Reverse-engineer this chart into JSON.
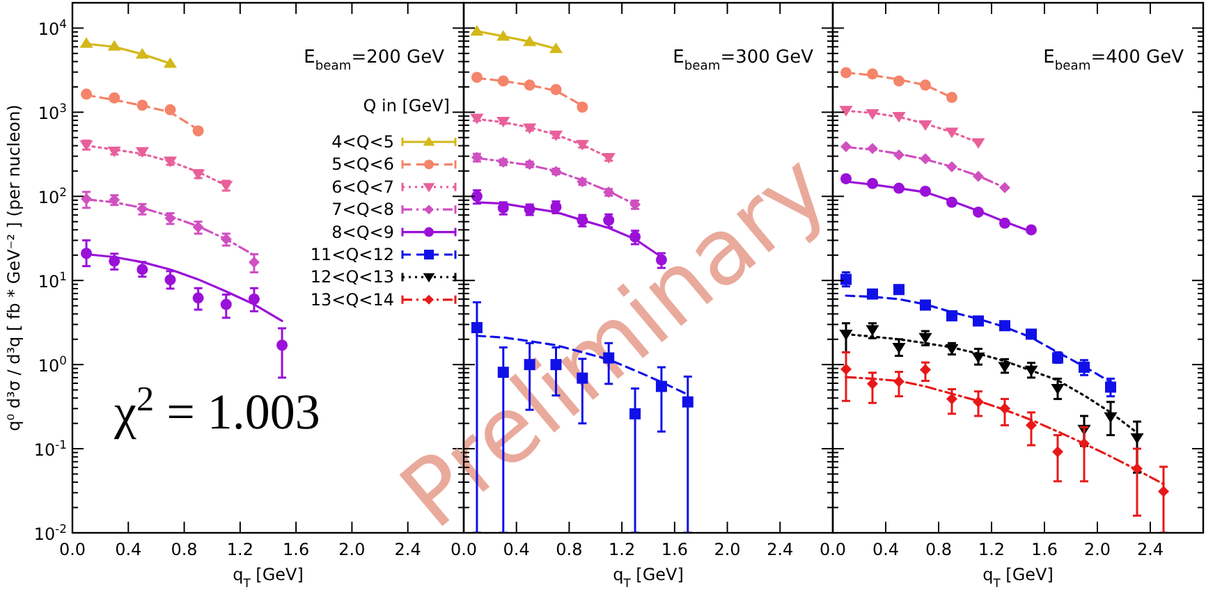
{
  "chart_data": [
    {
      "type": "scatter",
      "title": "E$_{beam}$=200 GeV",
      "xlabel": "q$_{T}$ [GeV]",
      "ylabel": "q⁰ d³σ / d³q [ fb * GeV⁻² ] (per nucleon)",
      "legend_title": "Q in [GeV]",
      "legend": "right",
      "log": "y",
      "grid": false,
      "xlim": [
        0,
        2.8
      ],
      "xticks": [
        {
          "value": 0,
          "label": "0.0"
        },
        {
          "value": 0.4,
          "label": "0.4"
        },
        {
          "value": 0.8,
          "label": "0.8"
        },
        {
          "value": 1.2,
          "label": "1.2"
        },
        {
          "value": 1.6,
          "label": "1.6"
        },
        {
          "value": 2.0,
          "label": "2.0"
        },
        {
          "value": 2.4,
          "label": "2.4"
        }
      ],
      "ylim": [
        0.01,
        20000
      ],
      "yticks": [
        {
          "value": 0.01,
          "label": "10$^{-2}$"
        },
        {
          "value": 0.1,
          "label": "10$^{-1}$"
        },
        {
          "value": 1,
          "label": "10$^{0}$"
        },
        {
          "value": 10,
          "label": "10$^{1}$"
        },
        {
          "value": 100,
          "label": "10$^{2}$"
        },
        {
          "value": 1000,
          "label": "10$^{3}$"
        },
        {
          "value": 10000,
          "label": "10$^{4}$"
        }
      ],
      "annotations": [
        "χ$^{2}$ = 1.003"
      ],
      "series": [
        {
          "type": "line",
          "color": "#d4b81a",
          "line_style": "solid",
          "x": [
            0.1,
            0.3,
            0.5,
            0.7
          ],
          "values": [
            6500,
            6000,
            4900,
            3800
          ]
        },
        {
          "type": "line",
          "color": "#f4846a",
          "line_style": "dashed",
          "x": [
            0.1,
            0.3,
            0.5,
            0.7,
            0.9
          ],
          "values": [
            1600,
            1400,
            1200,
            1000,
            620
          ]
        },
        {
          "type": "line",
          "color": "#e8609a",
          "line_style": "dotted",
          "x": [
            0.1,
            0.3,
            0.5,
            0.7,
            0.9,
            1.1
          ],
          "values": [
            400,
            360,
            320,
            260,
            195,
            135
          ]
        },
        {
          "type": "line",
          "color": "#d050c0",
          "line_style": "dashdot",
          "x": [
            0.1,
            0.3,
            0.5,
            0.7,
            0.9,
            1.1,
            1.3
          ],
          "values": [
            92,
            85,
            73,
            58,
            44,
            31,
            20
          ]
        },
        {
          "type": "line",
          "color": "#9a10d8",
          "line_style": "solid",
          "x": [
            0.1,
            0.3,
            0.5,
            0.7,
            0.9,
            1.1,
            1.3,
            1.5
          ],
          "values": [
            20.5,
            19,
            16.5,
            13.5,
            10.3,
            7.4,
            5.2,
            3.3
          ]
        },
        {
          "name": "4<Q<5",
          "color": "#d4b81a",
          "marker": "triangle",
          "line_style": "solid",
          "x": [
            0.1,
            0.3,
            0.5,
            0.7
          ],
          "values": [
            6600,
            6100,
            4900,
            3800
          ]
        },
        {
          "name": "5<Q<6",
          "color": "#f4846a",
          "marker": "circle",
          "line_style": "dashed",
          "x": [
            0.1,
            0.3,
            0.5,
            0.7,
            0.9
          ],
          "values": [
            1640,
            1480,
            1210,
            1070,
            600
          ]
        },
        {
          "name": "6<Q<7",
          "color": "#e8609a",
          "marker": "triangle-down",
          "line_style": "dotted",
          "x": [
            0.1,
            0.3,
            0.5,
            0.7,
            0.9,
            1.1
          ],
          "values": [
            410,
            345,
            340,
            262,
            185,
            135
          ],
          "errors": [
            50,
            30,
            30,
            25,
            20,
            18
          ]
        },
        {
          "name": "7<Q<8",
          "color": "#d050c0",
          "marker": "diamond",
          "line_style": "dashdot",
          "x": [
            0.1,
            0.3,
            0.5,
            0.7,
            0.9,
            1.1,
            1.3
          ],
          "values": [
            93,
            91,
            71,
            55,
            43,
            31,
            16.5
          ],
          "errors": [
            20,
            12,
            10,
            8,
            7,
            5,
            4
          ]
        },
        {
          "name": "8<Q<9",
          "color": "#9a10d8",
          "marker": "circle",
          "line_style": "solid",
          "x": [
            0.1,
            0.3,
            0.5,
            0.7,
            0.9,
            1.1,
            1.3,
            1.5
          ],
          "values": [
            21,
            17,
            13.5,
            10.2,
            6.2,
            5.2,
            6.0,
            1.7
          ],
          "errors": [
            [
              14.8,
              30
            ],
            [
              13.5,
              20.8
            ],
            [
              11.1,
              16.6
            ],
            [
              8,
              12.9
            ],
            [
              4.5,
              8.1
            ],
            [
              3.6,
              6.8
            ],
            [
              4.3,
              8.1
            ],
            [
              0.7,
              2.7
            ]
          ]
        },
        {
          "name": "11<Q<12",
          "color": "#1010e8",
          "marker": "square",
          "line_style": "dashed"
        },
        {
          "name": "12<Q<13",
          "color": "#000000",
          "marker": "triangle-down",
          "line_style": "dotted"
        },
        {
          "name": "13<Q<14",
          "color": "#e81818",
          "marker": "diamond",
          "line_style": "dashdot"
        }
      ]
    },
    {
      "type": "scatter",
      "title": "E$_{beam}$=300 GeV",
      "xlabel": "q$_{T}$ [GeV]",
      "log": "y",
      "grid": false,
      "tick_labels": "x",
      "xlim": [
        0,
        2.8
      ],
      "xticks": [
        {
          "value": 0,
          "label": "0.0"
        },
        {
          "value": 0.4,
          "label": "0.4"
        },
        {
          "value": 0.8,
          "label": "0.8"
        },
        {
          "value": 1.2,
          "label": "1.2"
        },
        {
          "value": 1.6,
          "label": "1.6"
        },
        {
          "value": 2.0,
          "label": "2.0"
        },
        {
          "value": 2.4,
          "label": "2.4"
        }
      ],
      "ylim": [
        0.01,
        20000
      ],
      "yticks": [
        0.01,
        0.1,
        1,
        10,
        100,
        1000,
        10000
      ],
      "annotations": [
        "Preliminary"
      ],
      "series": [
        {
          "type": "line",
          "color": "#d4b81a",
          "line_style": "solid",
          "x": [
            0.1,
            0.3,
            0.5,
            0.7
          ],
          "values": [
            9200,
            8000,
            6900,
            5700
          ]
        },
        {
          "type": "line",
          "color": "#f4846a",
          "line_style": "dashed",
          "x": [
            0.1,
            0.3,
            0.5,
            0.7,
            0.9
          ],
          "values": [
            2550,
            2350,
            2100,
            1800,
            1200
          ]
        },
        {
          "type": "line",
          "color": "#e8609a",
          "line_style": "dotted",
          "x": [
            0.1,
            0.3,
            0.5,
            0.7,
            0.9,
            1.1
          ],
          "values": [
            830,
            760,
            660,
            540,
            410,
            290
          ]
        },
        {
          "type": "line",
          "color": "#d050c0",
          "line_style": "dashdot",
          "x": [
            0.1,
            0.3,
            0.5,
            0.7,
            0.9,
            1.1,
            1.3
          ],
          "values": [
            285,
            260,
            235,
            200,
            155,
            115,
            80
          ]
        },
        {
          "type": "line",
          "color": "#9a10d8",
          "line_style": "solid",
          "x": [
            0.1,
            0.3,
            0.5,
            0.7,
            0.9,
            1.1,
            1.3,
            1.5
          ],
          "values": [
            85,
            82,
            73,
            65,
            52,
            42,
            31,
            19
          ]
        },
        {
          "type": "line",
          "color": "#1010e8",
          "line_style": "dashed",
          "x": [
            0.1,
            0.3,
            0.5,
            0.7,
            0.9,
            1.1,
            1.3,
            1.5,
            1.7
          ],
          "values": [
            2.2,
            2.1,
            1.9,
            1.7,
            1.4,
            1.15,
            0.85,
            0.62,
            0.44
          ]
        },
        {
          "color": "#d4b81a",
          "marker": "triangle",
          "x": [
            0.1,
            0.3,
            0.5,
            0.7
          ],
          "values": [
            9200,
            8000,
            6900,
            5700
          ]
        },
        {
          "color": "#f4846a",
          "marker": "circle",
          "x": [
            0.1,
            0.3,
            0.5,
            0.7,
            0.9
          ],
          "values": [
            2600,
            2350,
            2100,
            1860,
            1150
          ]
        },
        {
          "color": "#e8609a",
          "marker": "triangle-down",
          "x": [
            0.1,
            0.3,
            0.5,
            0.7,
            0.9,
            1.1
          ],
          "values": [
            850,
            780,
            650,
            535,
            415,
            290
          ],
          "errors": [
            60,
            50,
            45,
            40,
            35,
            25
          ]
        },
        {
          "color": "#d050c0",
          "marker": "diamond",
          "x": [
            0.1,
            0.3,
            0.5,
            0.7,
            0.9,
            1.1,
            1.3
          ],
          "values": [
            290,
            255,
            240,
            198,
            149,
            112,
            80
          ],
          "errors": [
            30,
            20,
            18,
            15,
            12,
            10,
            9
          ]
        },
        {
          "color": "#9a10d8",
          "marker": "circle",
          "x": [
            0.1,
            0.3,
            0.5,
            0.7,
            0.9,
            1.1,
            1.3,
            1.5
          ],
          "values": [
            100,
            73,
            70,
            75,
            52,
            52,
            33,
            17.6
          ],
          "errors": [
            18,
            12,
            10,
            12,
            8,
            9,
            6,
            3.5
          ]
        },
        {
          "color": "#1010e8",
          "marker": "square",
          "x": [
            0.1,
            0.3,
            0.5,
            0.7,
            0.9,
            1.1,
            1.3,
            1.5,
            1.7
          ],
          "values": [
            2.75,
            0.81,
            1.0,
            1.0,
            0.69,
            1.2,
            0.26,
            0.55,
            0.36
          ],
          "errors": [
            [
              0.01,
              5.5
            ],
            [
              0.01,
              1.6
            ],
            [
              0.29,
              1.8
            ],
            [
              0.43,
              1.6
            ],
            [
              0.2,
              1.17
            ],
            [
              0.59,
              1.8
            ],
            [
              0.01,
              0.52
            ],
            [
              0.16,
              0.93
            ],
            [
              0.01,
              0.72
            ]
          ]
        }
      ]
    },
    {
      "type": "scatter",
      "title": "E$_{beam}$=400 GeV",
      "xlabel": "q$_{T}$ [GeV]",
      "log": "y",
      "grid": false,
      "tick_labels": "x",
      "xlim": [
        0,
        2.8
      ],
      "xticks": [
        {
          "value": 0,
          "label": "0.0"
        },
        {
          "value": 0.4,
          "label": "0.4"
        },
        {
          "value": 0.8,
          "label": "0.8"
        },
        {
          "value": 1.2,
          "label": "1.2"
        },
        {
          "value": 1.6,
          "label": "1.6"
        },
        {
          "value": 2.0,
          "label": "2.0"
        },
        {
          "value": 2.4,
          "label": "2.4"
        }
      ],
      "ylim": [
        0.01,
        20000
      ],
      "yticks": [
        0.01,
        0.1,
        1,
        10,
        100,
        1000,
        10000
      ],
      "series": [
        {
          "type": "line",
          "color": "#f4846a",
          "line_style": "dashed",
          "x": [
            0.1,
            0.3,
            0.5,
            0.7,
            0.9
          ],
          "values": [
            2950,
            2750,
            2450,
            2100,
            1500
          ]
        },
        {
          "type": "line",
          "color": "#e8609a",
          "line_style": "dotted",
          "x": [
            0.1,
            0.3,
            0.5,
            0.7,
            0.9,
            1.1
          ],
          "values": [
            1040,
            980,
            880,
            730,
            580,
            435
          ]
        },
        {
          "type": "line",
          "color": "#d050c0",
          "line_style": "dashdot",
          "x": [
            0.1,
            0.3,
            0.5,
            0.7,
            0.9,
            1.1,
            1.3
          ],
          "values": [
            385,
            360,
            320,
            275,
            225,
            175,
            127
          ]
        },
        {
          "type": "line",
          "color": "#9a10d8",
          "line_style": "solid",
          "x": [
            0.1,
            0.3,
            0.5,
            0.7,
            0.9,
            1.1,
            1.3,
            1.5
          ],
          "values": [
            150,
            138,
            125,
            112,
            88,
            67,
            50,
            38
          ]
        },
        {
          "type": "line",
          "color": "#1010e8",
          "line_style": "dashed",
          "x": [
            0.1,
            0.3,
            0.5,
            0.7,
            0.9,
            1.1,
            1.3,
            1.5,
            1.7,
            1.9,
            2.1
          ],
          "values": [
            6.6,
            6.4,
            6.0,
            5.2,
            4.2,
            3.5,
            2.8,
            2.1,
            1.4,
            0.95,
            0.62
          ]
        },
        {
          "type": "line",
          "color": "#000000",
          "line_style": "dotted",
          "x": [
            0.1,
            0.3,
            0.5,
            0.7,
            0.9,
            1.1,
            1.3,
            1.5,
            1.7,
            1.9,
            2.1,
            2.3
          ],
          "values": [
            2.3,
            2.15,
            2.0,
            1.8,
            1.6,
            1.35,
            1.1,
            0.85,
            0.65,
            0.43,
            0.27,
            0.155
          ]
        },
        {
          "type": "line",
          "color": "#e81818",
          "line_style": "dashdot",
          "x": [
            0.1,
            0.3,
            0.5,
            0.7,
            0.9,
            1.1,
            1.3,
            1.5,
            1.7,
            1.9,
            2.1,
            2.3,
            2.5
          ],
          "values": [
            0.71,
            0.68,
            0.64,
            0.55,
            0.45,
            0.37,
            0.29,
            0.22,
            0.16,
            0.115,
            0.081,
            0.056,
            0.038
          ]
        },
        {
          "color": "#f4846a",
          "marker": "circle",
          "x": [
            0.1,
            0.3,
            0.5,
            0.7,
            0.9
          ],
          "values": [
            2950,
            2850,
            2350,
            2100,
            1500
          ]
        },
        {
          "color": "#e8609a",
          "marker": "triangle-down",
          "x": [
            0.1,
            0.3,
            0.5,
            0.7,
            0.9,
            1.1
          ],
          "values": [
            1050,
            960,
            890,
            710,
            580,
            435
          ]
        },
        {
          "color": "#d050c0",
          "marker": "diamond",
          "x": [
            0.1,
            0.3,
            0.5,
            0.7,
            0.9,
            1.1,
            1.3
          ],
          "values": [
            390,
            370,
            310,
            280,
            225,
            173,
            127
          ]
        },
        {
          "color": "#9a10d8",
          "marker": "circle",
          "x": [
            0.1,
            0.3,
            0.5,
            0.7,
            0.9,
            1.1,
            1.3,
            1.5
          ],
          "values": [
            162,
            142,
            125,
            115,
            85,
            65,
            48,
            40
          ]
        },
        {
          "color": "#1010e8",
          "marker": "square",
          "x": [
            0.1,
            0.3,
            0.5,
            0.7,
            0.9,
            1.1,
            1.3,
            1.5,
            1.7,
            1.9,
            2.1
          ],
          "values": [
            10.3,
            6.9,
            7.8,
            5.1,
            3.8,
            3.3,
            2.9,
            2.3,
            1.2,
            0.93,
            0.54
          ],
          "errors": [
            [
              8.5,
              12.5
            ],
            0.7,
            0.7,
            0.5,
            0.35,
            0.3,
            0.25,
            0.25,
            [
              1.05,
              1.4
            ],
            [
              0.75,
              1.13
            ],
            [
              0.42,
              0.68
            ]
          ]
        },
        {
          "color": "#000000",
          "marker": "triangle-down",
          "x": [
            0.1,
            0.3,
            0.5,
            0.7,
            0.9,
            1.1,
            1.3,
            1.5,
            1.7,
            1.9,
            2.1,
            2.3
          ],
          "values": [
            2.3,
            2.6,
            1.6,
            2.1,
            1.55,
            1.23,
            0.95,
            0.86,
            0.52,
            0.17,
            0.24,
            0.135
          ],
          "errors": [
            [
              1.4,
              3.1
            ],
            [
              2.06,
              3.1
            ],
            [
              1.27,
              2.0
            ],
            [
              1.7,
              2.5
            ],
            [
              1.32,
              1.8
            ],
            [
              1.0,
              1.54
            ],
            [
              0.8,
              1.16
            ],
            [
              0.7,
              1.05
            ],
            [
              0.39,
              0.68
            ],
            [
              0.108,
              0.245
            ],
            [
              0.145,
              0.36
            ],
            [
              0.052,
              0.21
            ]
          ]
        },
        {
          "color": "#e81818",
          "marker": "diamond",
          "x": [
            0.1,
            0.3,
            0.5,
            0.7,
            0.9,
            1.1,
            1.3,
            1.5,
            1.7,
            1.9,
            2.3,
            2.5
          ],
          "values": [
            0.88,
            0.59,
            0.63,
            0.87,
            0.39,
            0.36,
            0.3,
            0.19,
            0.092,
            0.115,
            0.058,
            0.031
          ],
          "errors": [
            [
              0.37,
              1.4
            ],
            [
              0.35,
              0.8
            ],
            [
              0.42,
              0.82
            ],
            [
              0.64,
              1.06
            ],
            [
              0.26,
              0.51
            ],
            [
              0.245,
              0.48
            ],
            [
              0.19,
              0.39
            ],
            [
              0.11,
              0.27
            ],
            [
              0.041,
              0.145
            ],
            [
              0.041,
              0.18
            ],
            [
              0.016,
              0.1
            ],
            [
              0.01,
              0.061
            ]
          ]
        }
      ]
    }
  ]
}
